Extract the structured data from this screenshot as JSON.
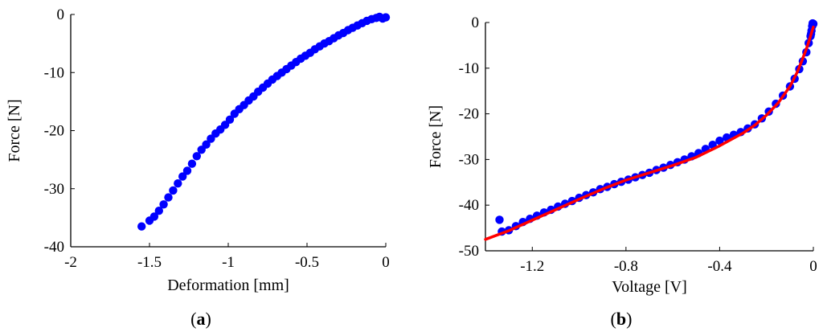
{
  "chart_data": [
    {
      "type": "scatter",
      "panel_label": {
        "open": "(",
        "letter": "a",
        "close": ")"
      },
      "xlabel": "Deformation [mm]",
      "ylabel": "Force [N]",
      "xlim": [
        -2,
        0
      ],
      "ylim": [
        -40,
        0
      ],
      "xticks": [
        -2,
        -1.5,
        -1,
        -0.5,
        0
      ],
      "xtick_labels": [
        "-2",
        "-1.5",
        "-1",
        "-0.5",
        "0"
      ],
      "yticks": [
        0,
        -10,
        -20,
        -30,
        -40
      ],
      "ytick_labels": [
        "0",
        "-10",
        "-20",
        "-30",
        "-40"
      ],
      "grid": false,
      "series": [
        {
          "color": "#0000ff",
          "points": [
            [
              -1.55,
              -36.5
            ],
            [
              -1.5,
              -35.5
            ],
            [
              -1.47,
              -34.8
            ],
            [
              -1.44,
              -33.8
            ],
            [
              -1.41,
              -32.7
            ],
            [
              -1.38,
              -31.5
            ],
            [
              -1.35,
              -30.3
            ],
            [
              -1.32,
              -29.1
            ],
            [
              -1.29,
              -27.9
            ],
            [
              -1.26,
              -26.9
            ],
            [
              -1.23,
              -25.7
            ],
            [
              -1.2,
              -24.4
            ],
            [
              -1.17,
              -23.3
            ],
            [
              -1.14,
              -22.4
            ],
            [
              -1.11,
              -21.4
            ],
            [
              -1.08,
              -20.5
            ],
            [
              -1.05,
              -19.8
            ],
            [
              -1.02,
              -19.0
            ],
            [
              -0.99,
              -18.1
            ],
            [
              -0.96,
              -17.1
            ],
            [
              -0.93,
              -16.3
            ],
            [
              -0.9,
              -15.6
            ],
            [
              -0.87,
              -14.8
            ],
            [
              -0.84,
              -14.1
            ],
            [
              -0.81,
              -13.3
            ],
            [
              -0.78,
              -12.6
            ],
            [
              -0.75,
              -11.9
            ],
            [
              -0.72,
              -11.2
            ],
            [
              -0.69,
              -10.6
            ],
            [
              -0.66,
              -10.0
            ],
            [
              -0.63,
              -9.4
            ],
            [
              -0.6,
              -8.8
            ],
            [
              -0.57,
              -8.2
            ],
            [
              -0.54,
              -7.6
            ],
            [
              -0.51,
              -7.1
            ],
            [
              -0.48,
              -6.6
            ],
            [
              -0.45,
              -6.0
            ],
            [
              -0.42,
              -5.5
            ],
            [
              -0.39,
              -5.0
            ],
            [
              -0.36,
              -4.6
            ],
            [
              -0.33,
              -4.1
            ],
            [
              -0.3,
              -3.6
            ],
            [
              -0.27,
              -3.2
            ],
            [
              -0.24,
              -2.7
            ],
            [
              -0.21,
              -2.3
            ],
            [
              -0.18,
              -1.9
            ],
            [
              -0.15,
              -1.5
            ],
            [
              -0.12,
              -1.1
            ],
            [
              -0.09,
              -0.8
            ],
            [
              -0.06,
              -0.6
            ],
            [
              -0.04,
              -0.4
            ],
            [
              -0.02,
              -0.7
            ],
            [
              0.0,
              -0.5
            ]
          ]
        }
      ]
    },
    {
      "type": "scatter",
      "panel_label": {
        "open": "(",
        "letter": "b",
        "close": ")"
      },
      "xlabel": "Voltage [V]",
      "ylabel": "Force [N]",
      "xlim": [
        -1.4,
        0
      ],
      "ylim": [
        -50,
        0
      ],
      "xticks": [
        -1.2,
        -0.8,
        -0.4,
        0
      ],
      "xtick_labels": [
        "-1.2",
        "-0.8",
        "-0.4",
        "0"
      ],
      "yticks": [
        0,
        -10,
        -20,
        -30,
        -40,
        -50
      ],
      "ytick_labels": [
        "0",
        "-10",
        "-20",
        "-30",
        "-40",
        "-50"
      ],
      "grid": false,
      "series": [
        {
          "color": "#0000ff",
          "points": [
            [
              -1.34,
              -43.2
            ],
            [
              -1.33,
              -45.8
            ],
            [
              -1.3,
              -45.5
            ],
            [
              -1.27,
              -44.6
            ],
            [
              -1.24,
              -43.7
            ],
            [
              -1.21,
              -43.0
            ],
            [
              -1.18,
              -42.3
            ],
            [
              -1.15,
              -41.6
            ],
            [
              -1.12,
              -41.0
            ],
            [
              -1.09,
              -40.3
            ],
            [
              -1.06,
              -39.7
            ],
            [
              -1.03,
              -39.1
            ],
            [
              -1.0,
              -38.4
            ],
            [
              -0.97,
              -37.8
            ],
            [
              -0.94,
              -37.2
            ],
            [
              -0.91,
              -36.5
            ],
            [
              -0.88,
              -36.0
            ],
            [
              -0.85,
              -35.4
            ],
            [
              -0.82,
              -34.9
            ],
            [
              -0.79,
              -34.4
            ],
            [
              -0.76,
              -33.9
            ],
            [
              -0.73,
              -33.4
            ],
            [
              -0.7,
              -32.9
            ],
            [
              -0.67,
              -32.3
            ],
            [
              -0.64,
              -31.8
            ],
            [
              -0.61,
              -31.2
            ],
            [
              -0.58,
              -30.6
            ],
            [
              -0.55,
              -30.0
            ],
            [
              -0.52,
              -29.3
            ],
            [
              -0.49,
              -28.6
            ],
            [
              -0.46,
              -27.7
            ],
            [
              -0.43,
              -26.8
            ],
            [
              -0.4,
              -25.9
            ],
            [
              -0.37,
              -25.2
            ],
            [
              -0.34,
              -24.6
            ],
            [
              -0.31,
              -24.0
            ],
            [
              -0.28,
              -23.2
            ],
            [
              -0.25,
              -22.3
            ],
            [
              -0.22,
              -21.0
            ],
            [
              -0.19,
              -19.5
            ],
            [
              -0.16,
              -17.8
            ],
            [
              -0.13,
              -16.0
            ],
            [
              -0.1,
              -14.0
            ],
            [
              -0.08,
              -12.3
            ],
            [
              -0.06,
              -10.2
            ],
            [
              -0.045,
              -8.5
            ],
            [
              -0.03,
              -6.5
            ],
            [
              -0.02,
              -4.5
            ],
            [
              -0.012,
              -3.0
            ],
            [
              -0.008,
              -1.8
            ],
            [
              -0.005,
              -0.8
            ],
            [
              -0.003,
              -0.2
            ],
            [
              0.0,
              -0.3
            ],
            [
              -0.01,
              -2.5
            ]
          ]
        },
        {
          "color": "#ff0000",
          "style": "line",
          "points": [
            [
              -1.4,
              -47.5
            ],
            [
              -1.3,
              -45.6
            ],
            [
              -1.2,
              -43.3
            ],
            [
              -1.1,
              -41.0
            ],
            [
              -1.0,
              -38.7
            ],
            [
              -0.9,
              -36.5
            ],
            [
              -0.8,
              -34.5
            ],
            [
              -0.7,
              -32.9
            ],
            [
              -0.6,
              -31.3
            ],
            [
              -0.5,
              -29.5
            ],
            [
              -0.4,
              -27.0
            ],
            [
              -0.3,
              -24.2
            ],
            [
              -0.25,
              -22.5
            ],
            [
              -0.2,
              -20.3
            ],
            [
              -0.15,
              -17.6
            ],
            [
              -0.1,
              -14.0
            ],
            [
              -0.07,
              -11.0
            ],
            [
              -0.05,
              -8.5
            ],
            [
              -0.03,
              -5.8
            ],
            [
              -0.015,
              -3.5
            ],
            [
              -0.005,
              -1.8
            ],
            [
              0.0,
              -1.0
            ]
          ]
        }
      ]
    }
  ]
}
